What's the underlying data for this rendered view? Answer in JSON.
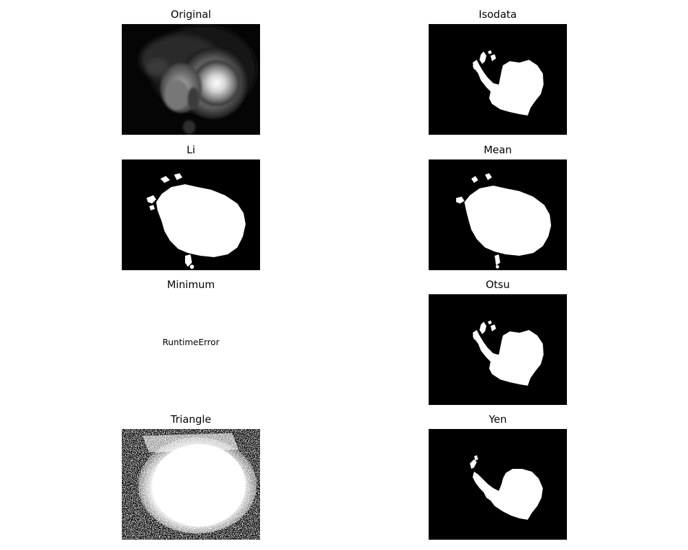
{
  "panels": [
    {
      "title": "Original",
      "kind": "grayscale-photo"
    },
    {
      "title": "Isodata",
      "kind": "binary-mask"
    },
    {
      "title": "Li",
      "kind": "binary-mask"
    },
    {
      "title": "Mean",
      "kind": "binary-mask"
    },
    {
      "title": "Minimum",
      "kind": "error",
      "message": "RuntimeError"
    },
    {
      "title": "Otsu",
      "kind": "binary-mask"
    },
    {
      "title": "Triangle",
      "kind": "binary-mask-noisy"
    },
    {
      "title": "Yen",
      "kind": "binary-mask"
    }
  ],
  "colors": {
    "background": "#ffffff",
    "mask_background": "#000000",
    "mask_foreground": "#ffffff",
    "title_text": "#000000"
  }
}
